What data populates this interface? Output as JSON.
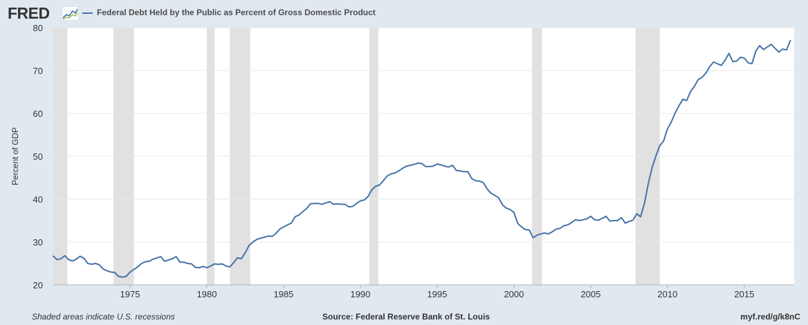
{
  "header": {
    "logo_text": "FRED",
    "logo_icon": "fred-chart-logo-icon",
    "legend_label": "Federal Debt Held by the Public as Percent of Gross Domestic Product"
  },
  "footer": {
    "note": "Shaded areas indicate U.S. recessions",
    "source": "Source: Federal Reserve Bank of St. Louis",
    "link": "myf.red/g/k8nC"
  },
  "colors": {
    "background": "#e1e9f0",
    "plot_background": "#ffffff",
    "series": "#4572a7",
    "recession": "#e1e1e1",
    "grid": "#e8e8e8"
  },
  "chart_data": {
    "type": "line",
    "ylabel": "Percent of GDP",
    "xlim": [
      1970.0,
      2018.25
    ],
    "ylim": [
      20,
      80
    ],
    "yticks": [
      20,
      30,
      40,
      50,
      60,
      70,
      80
    ],
    "xticks": [
      1975,
      1980,
      1985,
      1990,
      1995,
      2000,
      2005,
      2010,
      2015
    ],
    "grid": true,
    "legend_position": "top-left",
    "recessions": [
      [
        1970.0,
        1970.92
      ],
      [
        1973.92,
        1975.25
      ],
      [
        1980.0,
        1980.5
      ],
      [
        1981.5,
        1982.83
      ],
      [
        1990.58,
        1991.17
      ],
      [
        2001.17,
        2001.83
      ],
      [
        2007.92,
        2009.5
      ]
    ],
    "series": [
      {
        "name": "Federal Debt Held by the Public as Percent of Gross Domestic Product",
        "points": [
          [
            1970.0,
            26.7
          ],
          [
            1970.25,
            25.9
          ],
          [
            1970.5,
            26.1
          ],
          [
            1970.75,
            26.8
          ],
          [
            1971.0,
            25.9
          ],
          [
            1971.25,
            25.6
          ],
          [
            1971.5,
            26.0
          ],
          [
            1971.75,
            26.7
          ],
          [
            1972.0,
            26.2
          ],
          [
            1972.25,
            25.0
          ],
          [
            1972.5,
            24.8
          ],
          [
            1972.75,
            25.0
          ],
          [
            1973.0,
            24.7
          ],
          [
            1973.25,
            23.7
          ],
          [
            1973.5,
            23.3
          ],
          [
            1973.75,
            23.0
          ],
          [
            1974.0,
            22.9
          ],
          [
            1974.25,
            22.0
          ],
          [
            1974.5,
            21.8
          ],
          [
            1974.75,
            22.0
          ],
          [
            1975.0,
            23.0
          ],
          [
            1975.25,
            23.6
          ],
          [
            1975.5,
            24.2
          ],
          [
            1975.75,
            25.0
          ],
          [
            1976.0,
            25.4
          ],
          [
            1976.25,
            25.5
          ],
          [
            1976.5,
            26.0
          ],
          [
            1976.75,
            26.3
          ],
          [
            1977.0,
            26.6
          ],
          [
            1977.25,
            25.5
          ],
          [
            1977.5,
            25.8
          ],
          [
            1977.75,
            26.1
          ],
          [
            1978.0,
            26.6
          ],
          [
            1978.25,
            25.3
          ],
          [
            1978.5,
            25.3
          ],
          [
            1978.75,
            25.0
          ],
          [
            1979.0,
            24.9
          ],
          [
            1979.25,
            24.1
          ],
          [
            1979.5,
            24.0
          ],
          [
            1979.75,
            24.3
          ],
          [
            1980.0,
            24.0
          ],
          [
            1980.25,
            24.4
          ],
          [
            1980.5,
            24.9
          ],
          [
            1980.75,
            24.8
          ],
          [
            1981.0,
            24.9
          ],
          [
            1981.25,
            24.4
          ],
          [
            1981.5,
            24.2
          ],
          [
            1981.75,
            25.2
          ],
          [
            1982.0,
            26.3
          ],
          [
            1982.25,
            26.1
          ],
          [
            1982.5,
            27.5
          ],
          [
            1982.75,
            29.2
          ],
          [
            1983.0,
            30.0
          ],
          [
            1983.25,
            30.6
          ],
          [
            1983.5,
            30.9
          ],
          [
            1983.75,
            31.1
          ],
          [
            1984.0,
            31.4
          ],
          [
            1984.25,
            31.3
          ],
          [
            1984.5,
            32.0
          ],
          [
            1984.75,
            33.0
          ],
          [
            1985.0,
            33.5
          ],
          [
            1985.25,
            34.0
          ],
          [
            1985.5,
            34.4
          ],
          [
            1985.75,
            35.9
          ],
          [
            1986.0,
            36.3
          ],
          [
            1986.25,
            37.1
          ],
          [
            1986.5,
            37.8
          ],
          [
            1986.75,
            38.9
          ],
          [
            1987.0,
            39.0
          ],
          [
            1987.25,
            39.0
          ],
          [
            1987.5,
            38.8
          ],
          [
            1987.75,
            39.1
          ],
          [
            1988.0,
            39.4
          ],
          [
            1988.25,
            38.8
          ],
          [
            1988.5,
            38.9
          ],
          [
            1988.75,
            38.8
          ],
          [
            1989.0,
            38.8
          ],
          [
            1989.25,
            38.2
          ],
          [
            1989.5,
            38.3
          ],
          [
            1989.75,
            39.0
          ],
          [
            1990.0,
            39.6
          ],
          [
            1990.25,
            39.8
          ],
          [
            1990.5,
            40.6
          ],
          [
            1990.75,
            42.2
          ],
          [
            1991.0,
            43.0
          ],
          [
            1991.25,
            43.3
          ],
          [
            1991.5,
            44.3
          ],
          [
            1991.75,
            45.4
          ],
          [
            1992.0,
            45.9
          ],
          [
            1992.25,
            46.1
          ],
          [
            1992.5,
            46.6
          ],
          [
            1992.75,
            47.2
          ],
          [
            1993.0,
            47.7
          ],
          [
            1993.25,
            47.9
          ],
          [
            1993.5,
            48.1
          ],
          [
            1993.75,
            48.4
          ],
          [
            1994.0,
            48.3
          ],
          [
            1994.25,
            47.6
          ],
          [
            1994.5,
            47.6
          ],
          [
            1994.75,
            47.7
          ],
          [
            1995.0,
            48.2
          ],
          [
            1995.25,
            48.0
          ],
          [
            1995.5,
            47.7
          ],
          [
            1995.75,
            47.5
          ],
          [
            1996.0,
            47.9
          ],
          [
            1996.25,
            46.7
          ],
          [
            1996.5,
            46.6
          ],
          [
            1996.75,
            46.4
          ],
          [
            1997.0,
            46.4
          ],
          [
            1997.25,
            44.8
          ],
          [
            1997.5,
            44.3
          ],
          [
            1997.75,
            44.2
          ],
          [
            1998.0,
            43.9
          ],
          [
            1998.25,
            42.4
          ],
          [
            1998.5,
            41.4
          ],
          [
            1998.75,
            40.9
          ],
          [
            1999.0,
            40.3
          ],
          [
            1999.25,
            38.7
          ],
          [
            1999.5,
            37.9
          ],
          [
            1999.75,
            37.6
          ],
          [
            2000.0,
            36.9
          ],
          [
            2000.25,
            34.3
          ],
          [
            2000.5,
            33.5
          ],
          [
            2000.75,
            32.9
          ],
          [
            2001.0,
            32.8
          ],
          [
            2001.25,
            31.0
          ],
          [
            2001.5,
            31.6
          ],
          [
            2001.75,
            31.9
          ],
          [
            2002.0,
            32.1
          ],
          [
            2002.25,
            31.9
          ],
          [
            2002.5,
            32.4
          ],
          [
            2002.75,
            33.0
          ],
          [
            2003.0,
            33.2
          ],
          [
            2003.25,
            33.8
          ],
          [
            2003.5,
            34.0
          ],
          [
            2003.75,
            34.5
          ],
          [
            2004.0,
            35.2
          ],
          [
            2004.25,
            35.0
          ],
          [
            2004.5,
            35.2
          ],
          [
            2004.75,
            35.4
          ],
          [
            2005.0,
            36.0
          ],
          [
            2005.25,
            35.2
          ],
          [
            2005.5,
            35.1
          ],
          [
            2005.75,
            35.5
          ],
          [
            2006.0,
            36.0
          ],
          [
            2006.25,
            34.9
          ],
          [
            2006.5,
            35.0
          ],
          [
            2006.75,
            35.0
          ],
          [
            2007.0,
            35.7
          ],
          [
            2007.25,
            34.4
          ],
          [
            2007.5,
            34.8
          ],
          [
            2007.75,
            35.1
          ],
          [
            2008.0,
            36.6
          ],
          [
            2008.25,
            35.9
          ],
          [
            2008.5,
            39.0
          ],
          [
            2008.75,
            43.6
          ],
          [
            2009.0,
            47.4
          ],
          [
            2009.25,
            50.1
          ],
          [
            2009.5,
            52.5
          ],
          [
            2009.75,
            53.6
          ],
          [
            2010.0,
            56.4
          ],
          [
            2010.25,
            58.0
          ],
          [
            2010.5,
            60.1
          ],
          [
            2010.75,
            61.8
          ],
          [
            2011.0,
            63.3
          ],
          [
            2011.25,
            63.0
          ],
          [
            2011.5,
            65.1
          ],
          [
            2011.75,
            66.3
          ],
          [
            2012.0,
            67.9
          ],
          [
            2012.25,
            68.4
          ],
          [
            2012.5,
            69.4
          ],
          [
            2012.75,
            70.9
          ],
          [
            2013.0,
            72.0
          ],
          [
            2013.25,
            71.6
          ],
          [
            2013.5,
            71.2
          ],
          [
            2013.75,
            72.4
          ],
          [
            2014.0,
            74.0
          ],
          [
            2014.25,
            72.1
          ],
          [
            2014.5,
            72.2
          ],
          [
            2014.75,
            73.1
          ],
          [
            2015.0,
            72.9
          ],
          [
            2015.25,
            71.8
          ],
          [
            2015.5,
            71.6
          ],
          [
            2015.75,
            74.5
          ],
          [
            2016.0,
            75.8
          ],
          [
            2016.25,
            74.9
          ],
          [
            2016.5,
            75.5
          ],
          [
            2016.75,
            76.1
          ],
          [
            2017.0,
            75.2
          ],
          [
            2017.25,
            74.3
          ],
          [
            2017.5,
            75.0
          ],
          [
            2017.75,
            74.8
          ],
          [
            2018.0,
            77.0
          ]
        ]
      }
    ]
  }
}
